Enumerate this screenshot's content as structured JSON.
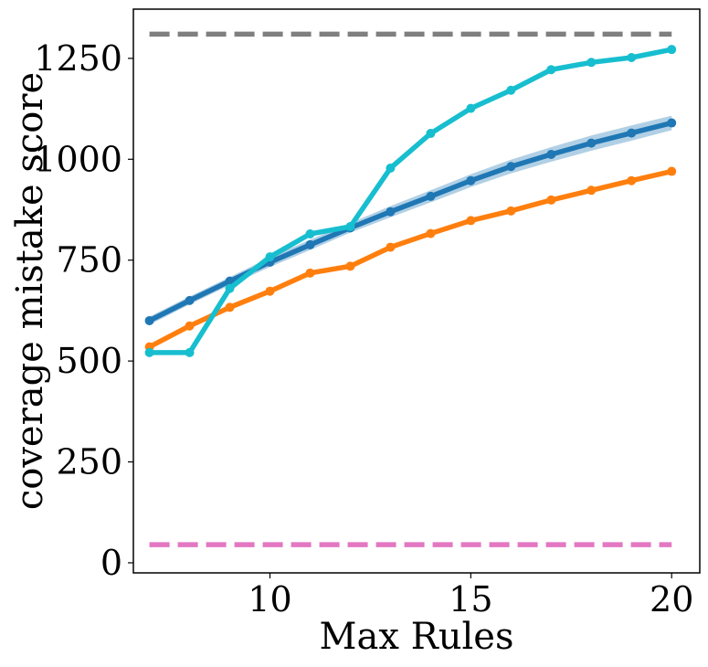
{
  "chart_data": {
    "type": "line",
    "xlabel": "Max Rules",
    "ylabel": "coverage mistake score",
    "xlim": [
      6.6,
      20.7
    ],
    "ylim": [
      -25,
      1372
    ],
    "xticks": [
      10,
      15,
      20
    ],
    "yticks": [
      0,
      250,
      500,
      750,
      1000,
      1250
    ],
    "grid": false,
    "legend": "none",
    "series": [
      {
        "color": "#1f77b4",
        "style": "solid",
        "markers": true,
        "band": true,
        "x": [
          7,
          8,
          9,
          10,
          11,
          12,
          13,
          14,
          15,
          16,
          17,
          18,
          19,
          20
        ],
        "values": [
          600,
          650,
          698,
          745,
          788,
          830,
          870,
          908,
          947,
          982,
          1012,
          1040,
          1065,
          1090
        ],
        "band_lower": [
          590,
          640,
          688,
          733,
          775,
          818,
          856,
          893,
          931,
          965,
          994,
          1021,
          1046,
          1072
        ],
        "band_upper": [
          610,
          660,
          708,
          757,
          801,
          842,
          884,
          923,
          963,
          999,
          1030,
          1059,
          1084,
          1108
        ]
      },
      {
        "color": "#ff7f0e",
        "style": "solid",
        "markers": true,
        "x": [
          7,
          8,
          9,
          10,
          11,
          12,
          13,
          14,
          15,
          16,
          17,
          18,
          19,
          20
        ],
        "values": [
          535,
          587,
          633,
          673,
          718,
          735,
          782,
          816,
          848,
          872,
          899,
          923,
          947,
          970
        ]
      },
      {
        "color": "#17becf",
        "style": "solid",
        "markers": true,
        "x": [
          7,
          8,
          9,
          10,
          11,
          12,
          13,
          14,
          15,
          16,
          17,
          18,
          19,
          20
        ],
        "values": [
          521,
          521,
          680,
          758,
          815,
          833,
          978,
          1064,
          1126,
          1171,
          1222,
          1240,
          1252,
          1272
        ]
      },
      {
        "color": "#7f7f7f",
        "style": "dashed",
        "markers": false,
        "x": [
          7,
          20
        ],
        "values": [
          1310,
          1310
        ]
      },
      {
        "color": "#e377c2",
        "style": "dashed",
        "markers": false,
        "x": [
          7,
          20
        ],
        "values": [
          45,
          45
        ]
      }
    ]
  }
}
